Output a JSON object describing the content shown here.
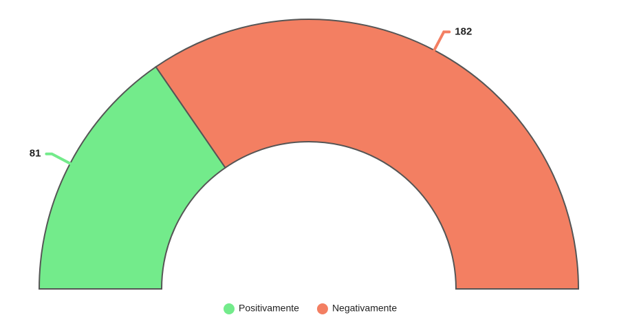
{
  "chart_data": {
    "type": "pie",
    "half": true,
    "donut": true,
    "categories": [
      "Positivamente",
      "Negativamente"
    ],
    "values": [
      81,
      182
    ],
    "colors": [
      "#73eb8b",
      "#f37f62"
    ],
    "legend": "bottom"
  }
}
